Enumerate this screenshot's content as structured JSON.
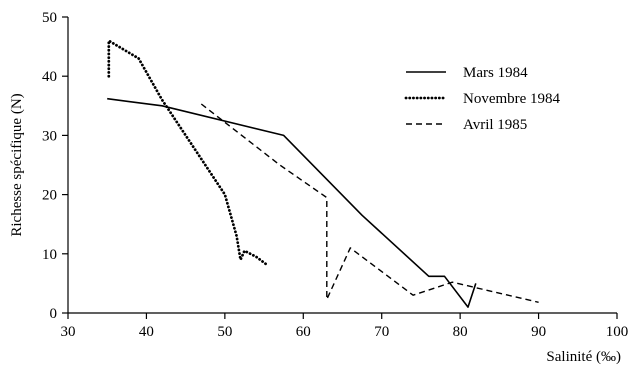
{
  "chart_data": {
    "type": "line",
    "title": "",
    "xlabel": "Salinité (‰)",
    "ylabel": "Richesse spécifique (N)",
    "xlim": [
      30,
      100
    ],
    "ylim": [
      0,
      50
    ],
    "xticks": [
      30,
      40,
      50,
      60,
      70,
      80,
      90,
      100
    ],
    "yticks": [
      0,
      10,
      20,
      30,
      40,
      50
    ],
    "grid": false,
    "legend_position": "top-right",
    "series": [
      {
        "name": "Mars 1984",
        "style": "solid",
        "points": [
          [
            35,
            36.2
          ],
          [
            42,
            35
          ],
          [
            57.5,
            30
          ],
          [
            67.5,
            16.5
          ],
          [
            76,
            6.2
          ],
          [
            78,
            6.2
          ],
          [
            81,
            1
          ],
          [
            82,
            5
          ]
        ]
      },
      {
        "name": "Novembre 1984",
        "style": "dotted",
        "points": [
          [
            35.2,
            40
          ],
          [
            35.2,
            46
          ],
          [
            39,
            43
          ],
          [
            42,
            36
          ],
          [
            46,
            28
          ],
          [
            50,
            20
          ],
          [
            51.5,
            13
          ],
          [
            52,
            9
          ],
          [
            52.5,
            10.5
          ],
          [
            54,
            9.5
          ],
          [
            55.5,
            8
          ]
        ]
      },
      {
        "name": "Avril 1985",
        "style": "dashed",
        "points": [
          [
            47,
            35.3
          ],
          [
            57,
            25
          ],
          [
            63,
            19.5
          ],
          [
            63,
            2.3
          ],
          [
            66,
            11
          ],
          [
            74,
            3
          ],
          [
            79,
            5.2
          ],
          [
            90,
            1.8
          ]
        ]
      }
    ]
  }
}
